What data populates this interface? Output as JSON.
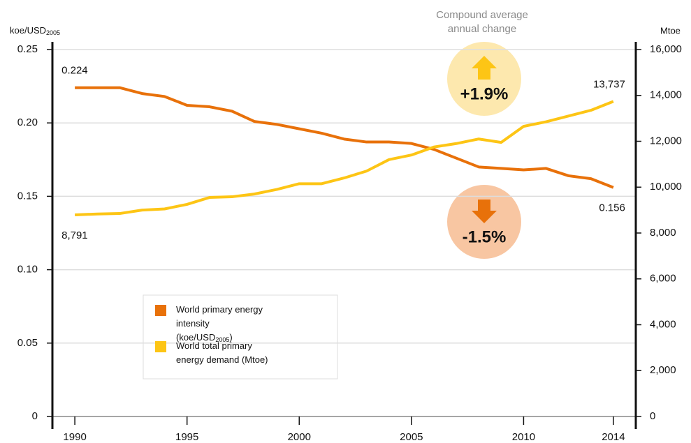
{
  "chart_data": {
    "type": "line",
    "y_label": "koe/USD2005",
    "y2_label": "Mtoe",
    "change_title": "Compound average annual change",
    "change_labels": [
      "+1.9%",
      "-1.5%"
    ],
    "x": [
      1990,
      1991,
      1992,
      1993,
      1994,
      1995,
      1996,
      1997,
      1998,
      1999,
      2000,
      2001,
      2002,
      2003,
      2004,
      2005,
      2006,
      2007,
      2008,
      2009,
      2010,
      2011,
      2012,
      2013,
      2014
    ],
    "xlim": [
      1989,
      2015
    ],
    "xticks": [
      1990,
      1995,
      2000,
      2005,
      2010,
      2014
    ],
    "ylim": [
      0,
      0.25
    ],
    "yticks": [
      0,
      0.05,
      {
        "value": 0.1,
        "label": "0.10"
      },
      0.15,
      {
        "value": 0.2,
        "label": "0.20"
      },
      0.25
    ],
    "y2lim": [
      0,
      16000
    ],
    "y2ticks": [
      0,
      {
        "value": 2000,
        "label": "2,000"
      },
      {
        "value": 4000,
        "label": "4,000"
      },
      {
        "value": 6000,
        "label": "6,000"
      },
      {
        "value": 8000,
        "label": "8,000"
      },
      {
        "value": 10000,
        "label": "10,000"
      },
      {
        "value": 12000,
        "label": "12,000"
      },
      {
        "value": 14000,
        "label": "14,000"
      },
      {
        "value": 16000,
        "label": "16,000"
      }
    ],
    "grid": true,
    "series": [
      {
        "name": "World primary energy intensity (koe/USD2005)",
        "color": "#e8710a",
        "values": [
          0.224,
          0.224,
          0.224,
          0.22,
          0.218,
          0.212,
          0.211,
          0.208,
          0.201,
          0.199,
          0.196,
          0.193,
          0.189,
          0.187,
          0.187,
          0.186,
          0.182,
          0.176,
          0.17,
          0.169,
          0.168,
          0.169,
          0.164,
          0.162,
          0.156
        ],
        "value_labels": [
          "0.224",
          null,
          null,
          null,
          null,
          null,
          null,
          null,
          null,
          null,
          null,
          null,
          null,
          null,
          null,
          null,
          null,
          null,
          null,
          null,
          null,
          null,
          null,
          null,
          "0.156"
        ]
      },
      {
        "name": "World total primary energy demand (Mtoe)",
        "color": "#fdc515",
        "axis": "y2",
        "values": [
          8791,
          8830,
          8850,
          9000,
          9050,
          9250,
          9550,
          9580,
          9700,
          9900,
          10150,
          10150,
          10400,
          10700,
          11200,
          11400,
          11750,
          11900,
          12100,
          11950,
          12650,
          12850,
          13100,
          13350,
          13737
        ],
        "value_labels": [
          "8,791",
          null,
          null,
          null,
          null,
          null,
          null,
          null,
          null,
          null,
          null,
          null,
          null,
          null,
          null,
          null,
          null,
          null,
          null,
          null,
          null,
          null,
          null,
          null,
          "13,737"
        ]
      }
    ]
  }
}
